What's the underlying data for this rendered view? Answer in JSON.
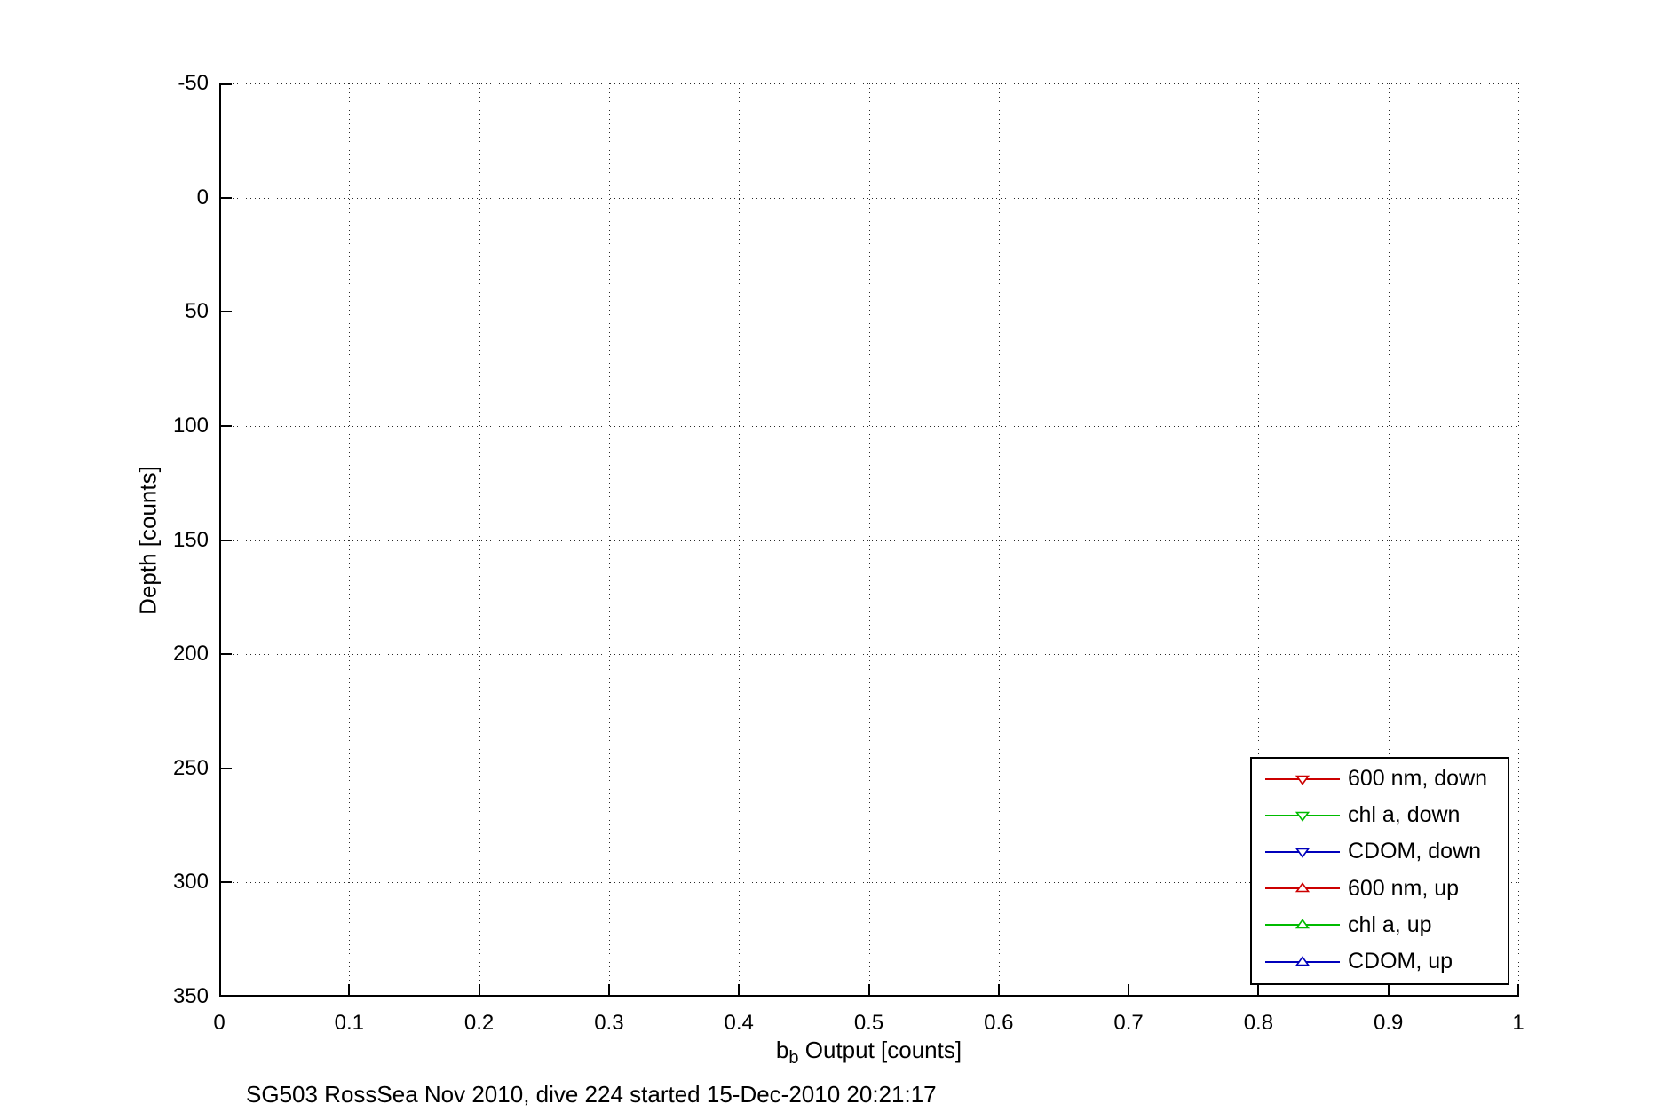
{
  "figure": {
    "caption": "SG503 RossSea Nov 2010, dive 224 started 15-Dec-2010 20:21:17"
  },
  "chart_data": {
    "type": "line",
    "title": "",
    "xlabel_base": "b",
    "xlabel_subscript": "b",
    "xlabel_rest": " Output [counts]",
    "ylabel": "Depth [counts]",
    "xlim": [
      0,
      1
    ],
    "ylim": [
      -50,
      350
    ],
    "ydir": "reverse",
    "grid": true,
    "x_ticks": [
      0,
      0.1,
      0.2,
      0.3,
      0.4,
      0.5,
      0.6,
      0.7,
      0.8,
      0.9,
      1
    ],
    "x_tick_labels": [
      "0",
      "0.1",
      "0.2",
      "0.3",
      "0.4",
      "0.5",
      "0.6",
      "0.7",
      "0.8",
      "0.9",
      "1"
    ],
    "y_ticks": [
      -50,
      0,
      50,
      100,
      150,
      200,
      250,
      300,
      350
    ],
    "y_tick_labels": [
      "-50",
      "0",
      "50",
      "100",
      "150",
      "200",
      "250",
      "300",
      "350"
    ],
    "legend_position": "inside lower right",
    "series": [
      {
        "name": "600 nm, down",
        "color": "#cc0000",
        "marker": "triangle-down",
        "values": []
      },
      {
        "name": "chl a, down",
        "color": "#00bb00",
        "marker": "triangle-down",
        "values": []
      },
      {
        "name": "CDOM, down",
        "color": "#0000bb",
        "marker": "triangle-down",
        "values": []
      },
      {
        "name": "600 nm, up",
        "color": "#cc0000",
        "marker": "triangle-up",
        "values": []
      },
      {
        "name": "chl a, up",
        "color": "#00bb00",
        "marker": "triangle-up",
        "values": []
      },
      {
        "name": "CDOM, up",
        "color": "#0000bb",
        "marker": "triangle-up",
        "values": []
      }
    ]
  }
}
